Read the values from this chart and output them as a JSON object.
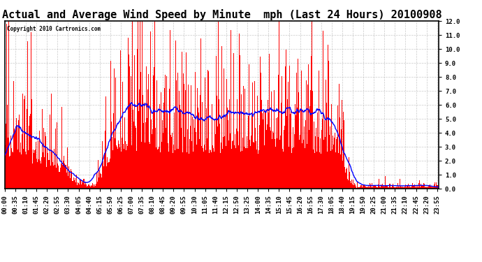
{
  "title": "Actual and Average Wind Speed by Minute  mph (Last 24 Hours) 20100908",
  "copyright": "Copyright 2010 Cartronics.com",
  "ylim": [
    0.0,
    12.0
  ],
  "yticks": [
    0.0,
    1.0,
    2.0,
    3.0,
    4.0,
    5.0,
    6.0,
    7.0,
    8.0,
    9.0,
    10.0,
    11.0,
    12.0
  ],
  "bar_color": "#FF0000",
  "line_color": "#0000FF",
  "background_color": "#FFFFFF",
  "grid_color": "#BBBBBB",
  "title_fontsize": 11,
  "tick_fontsize": 6.5,
  "n_minutes": 1440,
  "tick_every_minutes": 35
}
